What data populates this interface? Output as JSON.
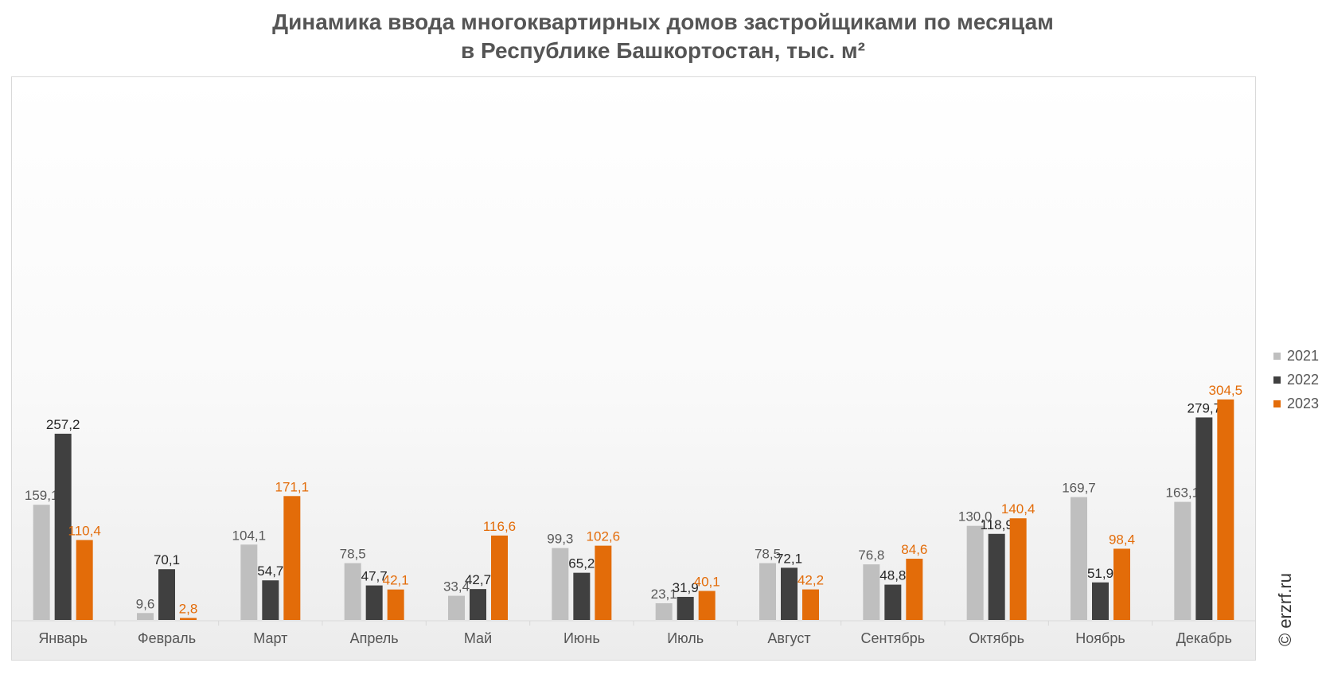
{
  "chart_data": {
    "type": "bar",
    "title": "Динамика ввода многоквартирных домов застройщиками по месяцам",
    "subtitle": "в Республике Башкортостан, тыс. м²",
    "xlabel": "",
    "ylabel": "",
    "ylim": [
      0,
      330
    ],
    "grid": false,
    "legend_position": "right",
    "categories": [
      "Январь",
      "Февраль",
      "Март",
      "Апрель",
      "Май",
      "Июнь",
      "Июль",
      "Август",
      "Сентябрь",
      "Октябрь",
      "Ноябрь",
      "Декабрь"
    ],
    "series": [
      {
        "name": "2021",
        "color": "#bfbfbf",
        "label_color": "#595959",
        "values": [
          159.1,
          9.6,
          104.1,
          78.5,
          33.4,
          99.3,
          23.1,
          78.5,
          76.8,
          130.0,
          169.7,
          163.1
        ],
        "labels": [
          "159,1",
          "9,6",
          "104,1",
          "78,5",
          "33,4",
          "99,3",
          "23,1",
          "78,5",
          "76,8",
          "130,0",
          "169,7",
          "163,1"
        ]
      },
      {
        "name": "2022",
        "color": "#404040",
        "label_color": "#262626",
        "values": [
          257.2,
          70.1,
          54.7,
          47.7,
          42.7,
          65.2,
          31.9,
          72.1,
          48.8,
          118.9,
          51.9,
          279.7
        ],
        "labels": [
          "257,2",
          "70,1",
          "54,7",
          "47,7",
          "42,7",
          "65,2",
          "31,9",
          "72,1",
          "48,8",
          "118,9",
          "51,9",
          "279,7"
        ]
      },
      {
        "name": "2023",
        "color": "#e36c09",
        "label_color": "#e36c09",
        "values": [
          110.4,
          2.8,
          171.1,
          42.1,
          116.6,
          102.6,
          40.1,
          42.2,
          84.6,
          140.4,
          98.4,
          304.5
        ],
        "labels": [
          "110,4",
          "2,8",
          "171,1",
          "42,1",
          "116,6",
          "102,6",
          "40,1",
          "42,2",
          "84,6",
          "140,4",
          "98,4",
          "304,5"
        ]
      }
    ]
  },
  "watermark": "© erzrf.ru"
}
